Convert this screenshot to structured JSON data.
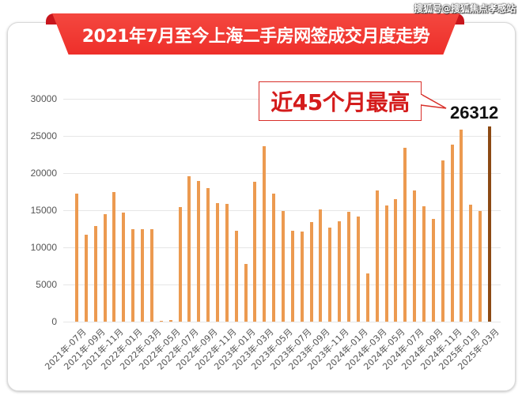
{
  "watermark": "搜狐号@搜狐焦点孝感站",
  "title": "2021年7月至今上海二手房网签成交月度走势",
  "callout": {
    "text": "近45个月最高",
    "peak_value": "26312"
  },
  "colors": {
    "bar": "#ec9a50",
    "highlight_bar": "#8c4a14",
    "ribbon": "#ee2f2a",
    "callout_text": "#d41c1c"
  },
  "y_ticks": [
    "0",
    "5000",
    "10000",
    "15000",
    "20000",
    "25000",
    "30000"
  ],
  "chart_data": {
    "type": "bar",
    "title": "2021年7月至今上海二手房网签成交月度走势",
    "xlabel": "",
    "ylabel": "",
    "ylim": [
      0,
      30000
    ],
    "grid": true,
    "legend": "none",
    "categories": [
      "2021年-07月",
      "2021年-08月",
      "2021年-09月",
      "2021年-10月",
      "2021年-11月",
      "2021年-12月",
      "2022年-01月",
      "2022年-02月",
      "2022年-03月",
      "2022年-04月",
      "2022年-05月",
      "2022年-06月",
      "2022年-07月",
      "2022年-08月",
      "2022年-09月",
      "2022年-10月",
      "2022年-11月",
      "2022年-12月",
      "2023年-01月",
      "2023年-02月",
      "2023年-03月",
      "2023年-04月",
      "2023年-05月",
      "2023年-06月",
      "2023年-07月",
      "2023年-08月",
      "2023年-09月",
      "2023年-10月",
      "2023年-11月",
      "2023年-12月",
      "2024年-01月",
      "2024年-02月",
      "2024年-03月",
      "2024年-04月",
      "2024年-05月",
      "2024年-06月",
      "2024年-07月",
      "2024年-08月",
      "2024年-09月",
      "2024年-10月",
      "2024年-11月",
      "2024年-12月",
      "2025年-01月",
      "2025年-02月",
      "2025年-03月"
    ],
    "visible_tick_labels": [
      "2021年-07月",
      "2021年-09月",
      "2021年-11月",
      "2022年-01月",
      "2022年-03月",
      "2022年-05月",
      "2022年-07月",
      "2022年-09月",
      "2022年-11月",
      "2023年-01月",
      "2023年-03月",
      "2023年-05月",
      "2023年-07月",
      "2023年-09月",
      "2023年-11月",
      "2024年-01月",
      "2024年-03月",
      "2024年-05月",
      "2024年-07月",
      "2024年-09月",
      "2024年-11月",
      "2025年-01月",
      "2025年-03月"
    ],
    "values": [
      17200,
      11700,
      12900,
      14500,
      17400,
      14700,
      12500,
      12500,
      12500,
      50,
      200,
      15400,
      19600,
      18900,
      18000,
      16000,
      15900,
      12200,
      7800,
      18800,
      23600,
      17200,
      14900,
      12200,
      12100,
      13400,
      15100,
      12700,
      13500,
      14800,
      14200,
      6500,
      17700,
      15600,
      16500,
      23400,
      17700,
      15500,
      13800,
      21700,
      23800,
      25800,
      15700,
      14900,
      26312
    ],
    "highlight_index": 44,
    "annotations": [
      {
        "text": "近45个月最高",
        "target": "2025年-03月"
      },
      {
        "text": "26312",
        "target": "2025年-03月"
      }
    ]
  }
}
